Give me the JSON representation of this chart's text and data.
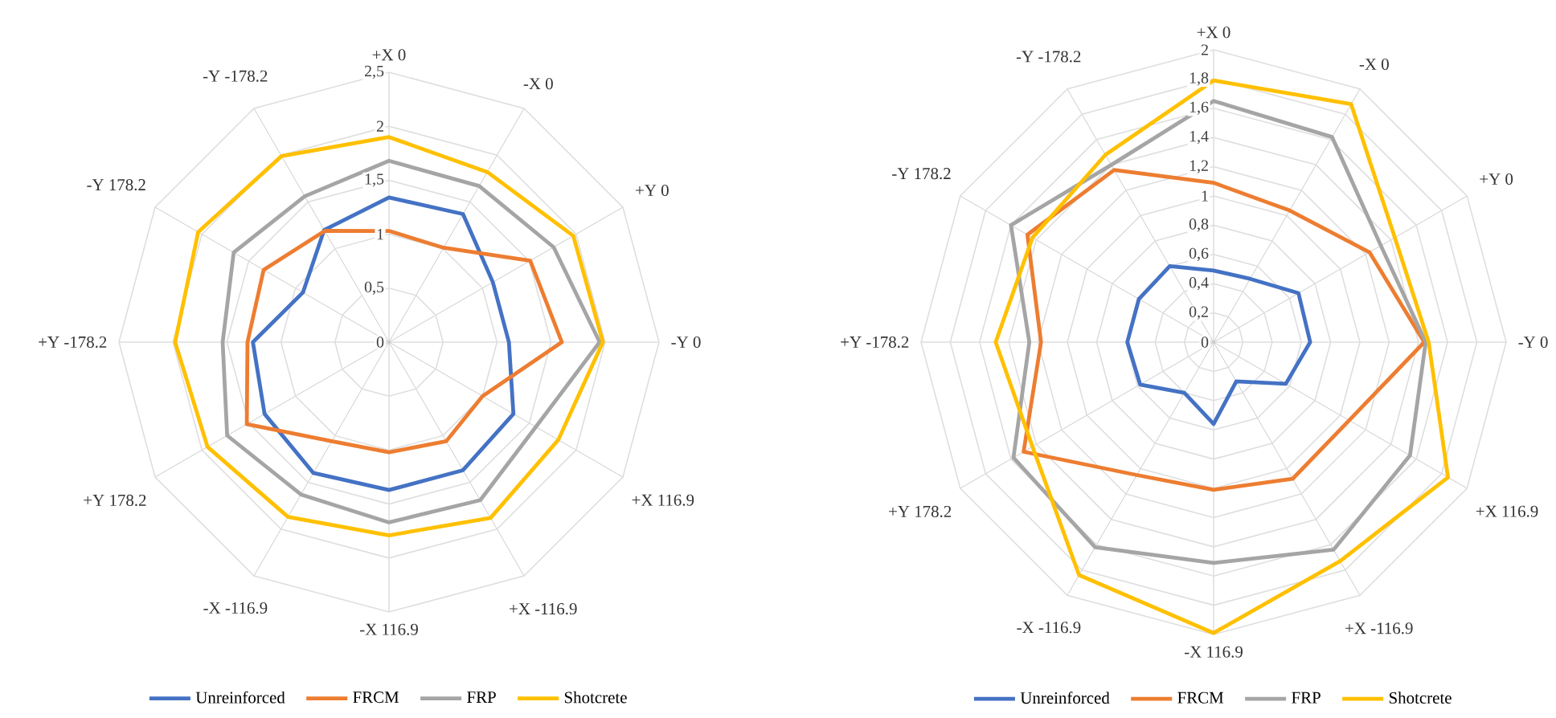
{
  "chart_data": [
    {
      "type": "radar",
      "categories": [
        "+X 0",
        "-X 0",
        "+Y 0",
        "-Y 0",
        "+X 116.9",
        "+X -116.9",
        "-X 116.9",
        "-X -116.9",
        "+Y 178.2",
        "+Y -178.2",
        "-Y 178.2",
        "-Y -178.2"
      ],
      "series": [
        {
          "name": "Unreinforced",
          "color": "#4472c4",
          "values": [
            1.34,
            1.37,
            1.11,
            1.11,
            1.33,
            1.37,
            1.37,
            1.4,
            1.33,
            1.26,
            0.92,
            1.2
          ]
        },
        {
          "name": "FRCM",
          "color": "#ed7d31",
          "values": [
            1.03,
            1.01,
            1.51,
            1.6,
            1.0,
            1.06,
            1.02,
            1.06,
            1.52,
            1.31,
            1.34,
            1.19
          ]
        },
        {
          "name": "FRP",
          "color": "#a5a5a5",
          "values": [
            1.68,
            1.67,
            1.76,
            1.95,
            1.57,
            1.69,
            1.67,
            1.63,
            1.73,
            1.54,
            1.66,
            1.56
          ]
        },
        {
          "name": "Shotcrete",
          "color": "#ffc000",
          "values": [
            1.9,
            1.82,
            1.97,
            1.98,
            1.81,
            1.88,
            1.79,
            1.87,
            1.94,
            1.98,
            2.04,
            1.99
          ]
        }
      ],
      "ylim": [
        0,
        2.5
      ],
      "yticks": [
        0,
        {
          "value": 0.5,
          "label": "0,5"
        },
        1,
        {
          "value": 1.5,
          "label": "1,5"
        },
        2,
        {
          "value": 2.5,
          "label": "2,5"
        }
      ],
      "grid": true,
      "legend": "bottom"
    },
    {
      "type": "radar",
      "categories": [
        "+X 0",
        "-X 0",
        "+Y 0",
        "-Y 0",
        "+X 116.9",
        "+X -116.9",
        "-X 116.9",
        "-X -116.9",
        "+Y 178.2",
        "+Y -178.2",
        "-Y 178.2",
        "-Y -178.2"
      ],
      "series": [
        {
          "name": "Unreinforced",
          "color": "#4472c4",
          "values": [
            0.49,
            0.5,
            0.67,
            0.66,
            0.57,
            0.31,
            0.56,
            0.4,
            0.58,
            0.59,
            0.59,
            0.6
          ]
        },
        {
          "name": "FRCM",
          "color": "#ed7d31",
          "values": [
            1.09,
            1.04,
            1.23,
            1.44,
            1.07,
            1.08,
            1.01,
            1.05,
            1.5,
            1.18,
            1.47,
            1.36
          ]
        },
        {
          "name": "FRP",
          "color": "#a5a5a5",
          "values": [
            1.65,
            1.62,
            1.32,
            1.45,
            1.55,
            1.64,
            1.51,
            1.62,
            1.58,
            1.26,
            1.6,
            1.4
          ]
        },
        {
          "name": "Shotcrete",
          "color": "#ffc000",
          "values": [
            1.79,
            1.88,
            1.43,
            1.47,
            1.85,
            1.73,
            1.99,
            1.84,
            1.43,
            1.49,
            1.43,
            1.48
          ]
        }
      ],
      "ylim": [
        0,
        2
      ],
      "yticks": [
        0,
        {
          "value": 0.2,
          "label": "0,2"
        },
        {
          "value": 0.4,
          "label": "0,4"
        },
        {
          "value": 0.6,
          "label": "0,6"
        },
        {
          "value": 0.8,
          "label": "0,8"
        },
        1,
        {
          "value": 1.2,
          "label": "1,2"
        },
        {
          "value": 1.4,
          "label": "1,4"
        },
        {
          "value": 1.6,
          "label": "1,6"
        },
        {
          "value": 1.8,
          "label": "1,8"
        },
        2
      ],
      "grid": true,
      "legend": "bottom"
    }
  ]
}
